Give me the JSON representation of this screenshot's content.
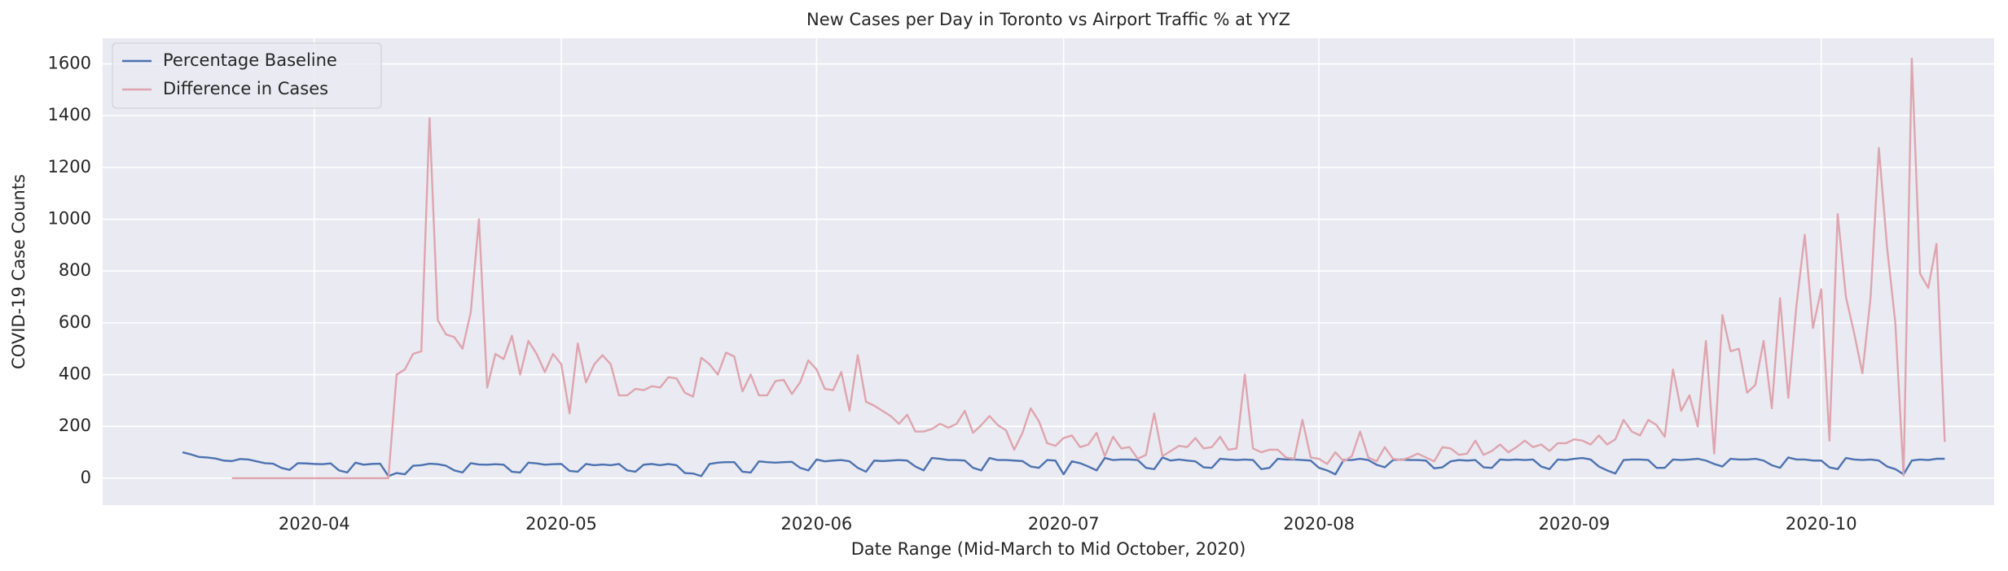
{
  "chart_data": {
    "type": "line",
    "title": "New Cases per Day in Toronto vs Airport Traffic % at YYZ",
    "xlabel": "Date Range (Mid-March to Mid October, 2020)",
    "ylabel": "COVID-19 Case Counts",
    "xlim": [
      -9.7,
      220
    ],
    "xticks": [
      {
        "value": 16,
        "label": "2020-04"
      },
      {
        "value": 46,
        "label": "2020-05"
      },
      {
        "value": 77,
        "label": "2020-06"
      },
      {
        "value": 107,
        "label": "2020-07"
      },
      {
        "value": 138,
        "label": "2020-08"
      },
      {
        "value": 169,
        "label": "2020-09"
      },
      {
        "value": 199,
        "label": "2020-10"
      }
    ],
    "ylim": [
      -104,
      1699
    ],
    "yticks": [
      0,
      200,
      400,
      600,
      800,
      1000,
      1200,
      1400,
      1600
    ],
    "grid": true,
    "legend": "upper left",
    "series": [
      {
        "name": "Percentage Baseline",
        "color": "#4c72b0",
        "values": [
          100,
          92,
          82,
          80,
          76,
          68,
          66,
          74,
          72,
          65,
          58,
          56,
          40,
          32,
          58,
          57,
          55,
          54,
          57,
          30,
          22,
          60,
          52,
          55,
          56,
          8,
          20,
          15,
          48,
          50,
          56,
          54,
          48,
          30,
          22,
          58,
          53,
          52,
          54,
          52,
          25,
          22,
          60,
          57,
          52,
          54,
          55,
          28,
          25,
          55,
          50,
          53,
          50,
          55,
          30,
          25,
          52,
          55,
          50,
          55,
          50,
          20,
          18,
          8,
          55,
          60,
          62,
          62,
          25,
          22,
          65,
          62,
          60,
          62,
          63,
          40,
          30,
          72,
          65,
          68,
          70,
          65,
          40,
          25,
          68,
          66,
          68,
          70,
          68,
          45,
          30,
          78,
          75,
          70,
          70,
          68,
          40,
          30,
          78,
          70,
          70,
          68,
          66,
          45,
          40,
          70,
          68,
          15,
          65,
          58,
          45,
          30,
          78,
          70,
          72,
          72,
          70,
          40,
          35,
          80,
          68,
          72,
          68,
          65,
          42,
          40,
          75,
          72,
          70,
          72,
          70,
          35,
          40,
          75,
          72,
          72,
          70,
          68,
          40,
          30,
          15,
          70,
          70,
          75,
          70,
          52,
          42,
          70,
          72,
          70,
          70,
          68,
          38,
          42,
          65,
          70,
          68,
          70,
          42,
          40,
          72,
          70,
          72,
          70,
          72,
          45,
          35,
          72,
          70,
          75,
          78,
          72,
          45,
          30,
          18,
          70,
          72,
          72,
          70,
          40,
          40,
          72,
          70,
          72,
          75,
          68,
          55,
          45,
          75,
          72,
          72,
          75,
          68,
          50,
          40,
          80,
          72,
          72,
          68,
          68,
          42,
          35,
          78,
          72,
          70,
          72,
          68,
          45,
          35,
          15,
          68,
          72,
          70,
          75,
          75
        ]
      },
      {
        "name": "Difference in Cases",
        "color": "#dea5ae",
        "values": [
          null,
          null,
          null,
          null,
          null,
          null,
          0,
          0,
          0,
          0,
          0,
          0,
          0,
          0,
          0,
          0,
          0,
          0,
          0,
          0,
          0,
          0,
          0,
          0,
          0,
          0,
          400,
          420,
          480,
          490,
          1390,
          610,
          555,
          545,
          500,
          640,
          1000,
          350,
          480,
          460,
          550,
          400,
          530,
          480,
          410,
          480,
          440,
          250,
          520,
          370,
          440,
          475,
          440,
          320,
          320,
          345,
          340,
          355,
          350,
          390,
          385,
          330,
          315,
          465,
          440,
          400,
          485,
          470,
          335,
          400,
          320,
          320,
          375,
          380,
          325,
          370,
          455,
          420,
          345,
          340,
          410,
          260,
          475,
          295,
          280,
          260,
          240,
          210,
          245,
          180,
          180,
          190,
          210,
          195,
          210,
          260,
          175,
          205,
          240,
          205,
          185,
          110,
          175,
          270,
          220,
          135,
          125,
          155,
          165,
          120,
          130,
          175,
          85,
          160,
          115,
          120,
          75,
          90,
          250,
          85,
          105,
          125,
          120,
          155,
          115,
          120,
          160,
          110,
          115,
          400,
          115,
          100,
          110,
          110,
          80,
          75,
          225,
          80,
          75,
          55,
          100,
          65,
          85,
          180,
          80,
          65,
          120,
          75,
          70,
          80,
          95,
          80,
          65,
          120,
          115,
          90,
          95,
          145,
          90,
          105,
          130,
          100,
          120,
          145,
          120,
          130,
          105,
          135,
          135,
          150,
          145,
          130,
          165,
          130,
          150,
          225,
          180,
          165,
          225,
          205,
          160,
          420,
          260,
          320,
          200,
          530,
          95,
          630,
          490,
          500,
          330,
          360,
          530,
          270,
          695,
          310,
          670,
          940,
          580,
          730,
          145,
          1020,
          700,
          560,
          405,
          700,
          1275,
          890,
          600,
          10,
          1620,
          790,
          735,
          905,
          140
        ]
      }
    ]
  }
}
